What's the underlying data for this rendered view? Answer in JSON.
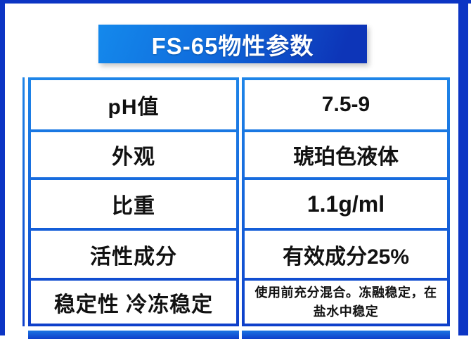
{
  "banner": {
    "title": "FS-65物性参数"
  },
  "table": {
    "rows": [
      {
        "label": "pH值",
        "value": "7.5-9"
      },
      {
        "label": "外观",
        "value": "琥珀色液体"
      },
      {
        "label": "比重",
        "value": "1.1g/ml"
      },
      {
        "label": "活性成分",
        "value": "有效成分25%"
      },
      {
        "label": "稳定性 冷冻稳定",
        "value": "使用前充分混合。冻融稳定，在盐水中稳定"
      }
    ]
  },
  "colors": {
    "frame_blue": "#0c35c4",
    "banner_gradient_start": "#1489ec",
    "banner_gradient_end": "#0d35b8",
    "border_gradient_start": "#1e85e8",
    "border_gradient_end": "#0e3fca",
    "text_black": "#111111",
    "banner_text": "#ffffff",
    "background": "#ffffff"
  }
}
